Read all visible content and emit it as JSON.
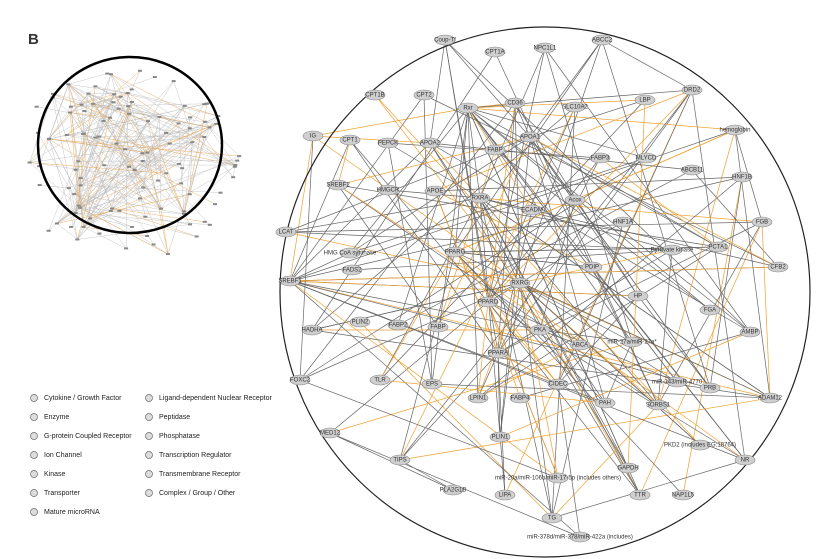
{
  "panel_label": "B",
  "nodes": [
    {
      "label": "Coup-Tf"
    },
    {
      "label": "CPT1A"
    },
    {
      "label": "NPC1L1"
    },
    {
      "label": "ABCC2"
    },
    {
      "label": "CPT1B"
    },
    {
      "label": "CPT2"
    },
    {
      "label": "Rxr"
    },
    {
      "label": "CD36"
    },
    {
      "label": "SLC10A2"
    },
    {
      "label": "LBP"
    },
    {
      "label": "DRD2"
    },
    {
      "label": "CPT1"
    },
    {
      "label": "PEPCK"
    },
    {
      "label": "APOA2"
    },
    {
      "label": "APOA1"
    },
    {
      "label": "hemoglobin"
    },
    {
      "label": "IG"
    },
    {
      "label": "FABP"
    },
    {
      "label": "FABP3"
    },
    {
      "label": "MLYCD"
    },
    {
      "label": "ABCB11"
    },
    {
      "label": "HNF1B"
    },
    {
      "label": "SREBF2"
    },
    {
      "label": "HMGCR"
    },
    {
      "label": "APOE"
    },
    {
      "label": "RXRA"
    },
    {
      "label": "Acox"
    },
    {
      "label": "ECADM"
    },
    {
      "label": "HNF1A"
    },
    {
      "label": "FGB"
    },
    {
      "label": "LCAT"
    },
    {
      "label": "HMG CoA synthase"
    },
    {
      "label": "PPARG"
    },
    {
      "label": "Pyruvate kinase"
    },
    {
      "label": "PCTA1"
    },
    {
      "label": "SREBF1"
    },
    {
      "label": "FADS2"
    },
    {
      "label": "RXRG"
    },
    {
      "label": "PDIP"
    },
    {
      "label": "CFB2"
    },
    {
      "label": "HP"
    },
    {
      "label": "PPARD"
    },
    {
      "label": "FGA"
    },
    {
      "label": "PLIN2"
    },
    {
      "label": "FABP2"
    },
    {
      "label": "FABP"
    },
    {
      "label": "PKA"
    },
    {
      "label": "AMBP"
    },
    {
      "label": "HADHA"
    },
    {
      "label": "ABCA"
    },
    {
      "label": "miR-27a/miR-27a*"
    },
    {
      "label": "PPARA"
    },
    {
      "label": "miR-143/miR-4770"
    },
    {
      "label": "PRB"
    },
    {
      "label": "FOXC2"
    },
    {
      "label": "TLR"
    },
    {
      "label": "EPS"
    },
    {
      "label": "CIDEC"
    },
    {
      "label": "LPIN1"
    },
    {
      "label": "FABP4"
    },
    {
      "label": "PAH"
    },
    {
      "label": "SORBS1"
    },
    {
      "label": "ADAM12"
    },
    {
      "label": "MED12"
    },
    {
      "label": "PLIN1"
    },
    {
      "label": "PKD2 (includes EG:18764)"
    },
    {
      "label": "TIPS"
    },
    {
      "label": "GAPDH"
    },
    {
      "label": "NR"
    },
    {
      "label": "miR-20a/miR-106b/miR-17-5p (includes others)"
    },
    {
      "label": "TTR"
    },
    {
      "label": "NAP1L5"
    },
    {
      "label": "PLA2G1B"
    },
    {
      "label": "LIPA"
    },
    {
      "label": "TG"
    },
    {
      "label": "miR-378d/miR-378/miR-422a (includes)"
    }
  ],
  "legend": [
    "Cytokine / Growth Factor",
    "Enzyme",
    "G-protein Coupled Receptor",
    "Ion Channel",
    "Kinase",
    "Transporter",
    "Mature microRNA",
    "Ligand-dependent Nuclear Receptor",
    "Peptidase",
    "Phosphatase",
    "Transcription Regulator",
    "Transmembrane Receptor",
    "Complex / Group / Other"
  ]
}
